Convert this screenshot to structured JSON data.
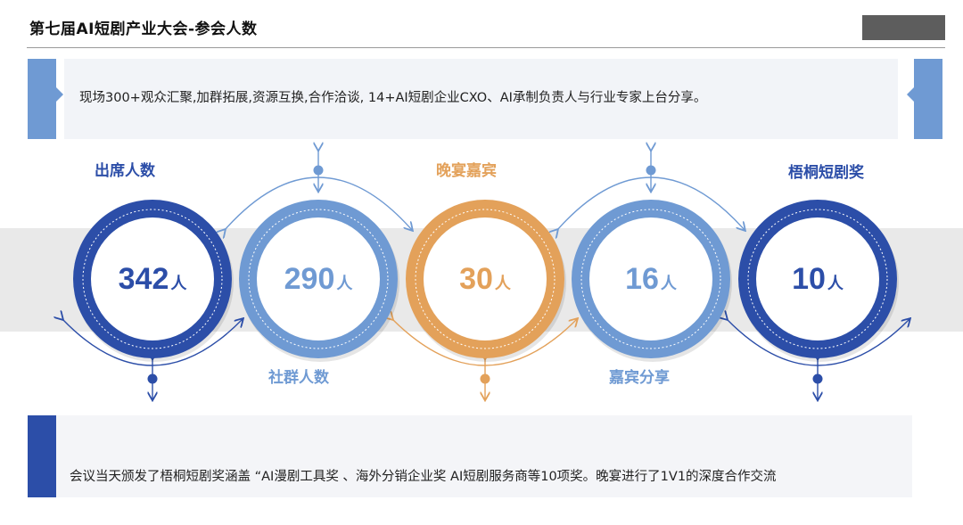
{
  "header": {
    "title": "第七届AI短剧产业大会-参会人数"
  },
  "intro": {
    "text": "现场300+观众汇聚,加群拓展,资源互换,合作洽谈, 14+AI短剧企业CXO、AI承制负责人与行业专家上台分享。"
  },
  "stats": [
    {
      "label": "出席人数",
      "value": "342",
      "unit": "人",
      "color": "#2c4ea8"
    },
    {
      "label": "社群人数",
      "value": "290",
      "unit": "人",
      "color": "#6f9ad3"
    },
    {
      "label": "晚宴嘉宾",
      "value": "30",
      "unit": "人",
      "color": "#e3a15a"
    },
    {
      "label": "嘉宾分享",
      "value": "16",
      "unit": "人",
      "color": "#6f9ad3"
    },
    {
      "label": "梧桐短剧奖",
      "value": "10",
      "unit": "人",
      "color": "#2c4ea8"
    }
  ],
  "summary": {
    "text": "会议当天颁发了梧桐短剧奖涵盖 “AI漫剧工具奖 、海外分销企业奖 AI短剧服务商等10项奖。晚宴进行了1V1的深度合作交流"
  },
  "colors": {
    "dark_blue": "#2c4ea8",
    "light_blue": "#6f9ad3",
    "orange": "#e3a15a",
    "band_gray": "#e9e9e9"
  }
}
